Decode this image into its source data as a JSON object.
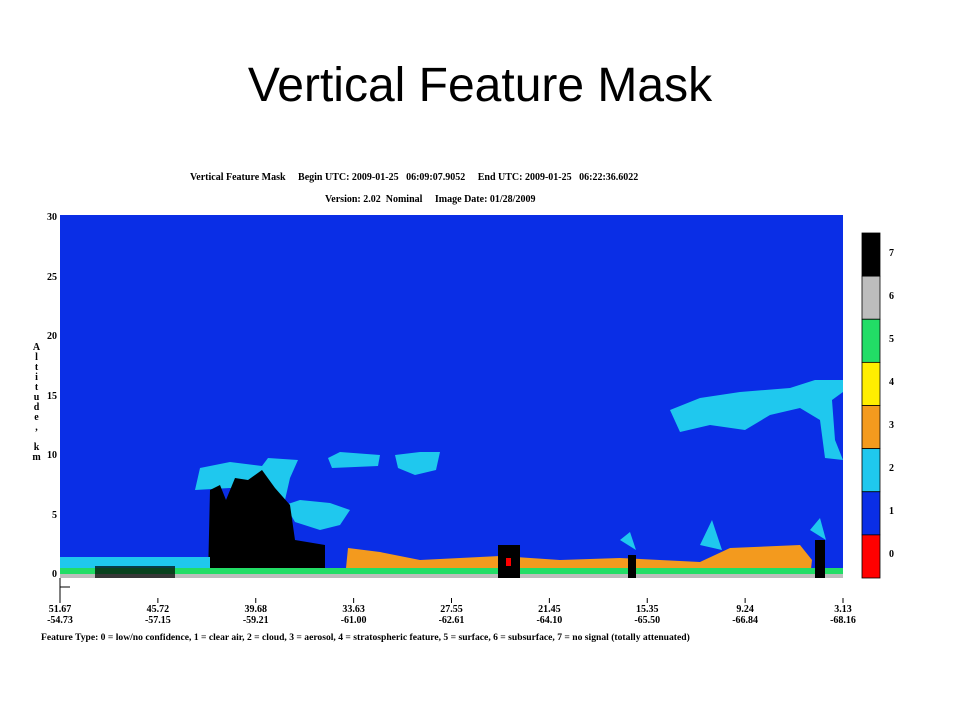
{
  "slide_title": "Vertical Feature Mask",
  "figure": {
    "header": [
      "Vertical Feature Mask     Begin UTC: 2009-01-25   06:09:07.9052     End UTC: 2009-01-25   06:22:36.6022",
      "Version: 2.02  Nominal     Image Date: 01/28/2009"
    ],
    "y_axis": {
      "label": "Altitude, km",
      "ticks": [
        "30",
        "25",
        "20",
        "15",
        "10",
        "5",
        "0"
      ]
    },
    "x_axis": {
      "ticks": [
        [
          "51.67",
          "-54.73"
        ],
        [
          "45.72",
          "-57.15"
        ],
        [
          "39.68",
          "-59.21"
        ],
        [
          "33.63",
          "-61.00"
        ],
        [
          "27.55",
          "-62.61"
        ],
        [
          "21.45",
          "-64.10"
        ],
        [
          "15.35",
          "-65.50"
        ],
        [
          "9.24",
          "-66.84"
        ],
        [
          "3.13",
          "-68.16"
        ]
      ]
    },
    "colorbar": [
      {
        "label": "7",
        "color": "#000000"
      },
      {
        "label": "6",
        "color": "#bdbdbd"
      },
      {
        "label": "5",
        "color": "#22dd66"
      },
      {
        "label": "4",
        "color": "#ffee00"
      },
      {
        "label": "3",
        "color": "#f39a1e"
      },
      {
        "label": "2",
        "color": "#1fc8ee"
      },
      {
        "label": "1",
        "color": "#0a2ee6"
      },
      {
        "label": "0",
        "color": "#ff0000"
      }
    ],
    "footer": "Feature Type: 0 = low/no confidence, 1 = clear air, 2 = cloud, 3 = aerosol, 4 = stratospheric feature, 5 = surface, 6 = subsurface, 7 = no signal (totally attenuated)"
  }
}
